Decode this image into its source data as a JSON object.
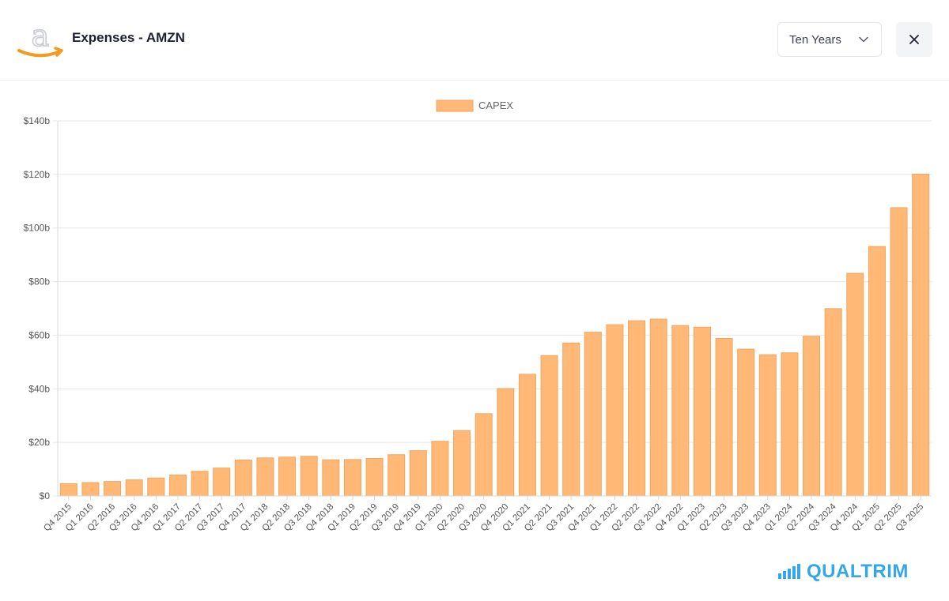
{
  "header": {
    "title": "Expenses - AMZN",
    "range_select": {
      "value": "Ten Years"
    }
  },
  "brand": {
    "name": "QUALTRIM"
  },
  "icons": {
    "logo": "amazon-logo-icon",
    "chevron": "chevron-down-icon",
    "close": "close-icon",
    "brand": "bar-chart-icon"
  },
  "colors": {
    "bar_fill": "#ffb876",
    "bar_stroke": "#f2a55f",
    "brand": "#32a8e9",
    "amazon_arrow": "#f39a1f"
  },
  "chart_data": {
    "type": "bar",
    "legend": [
      "CAPEX"
    ],
    "legend_position": "top-center",
    "grid": true,
    "ylim": [
      0,
      140
    ],
    "yticks": [
      "$0",
      "$20b",
      "$40b",
      "$60b",
      "$80b",
      "$100b",
      "$120b",
      "$140b"
    ],
    "categories": [
      "Q4 2015",
      "Q1 2016",
      "Q2 2016",
      "Q3 2016",
      "Q4 2016",
      "Q1 2017",
      "Q2 2017",
      "Q3 2017",
      "Q4 2017",
      "Q1 2018",
      "Q2 2018",
      "Q3 2018",
      "Q4 2018",
      "Q1 2019",
      "Q2 2019",
      "Q3 2019",
      "Q4 2019",
      "Q1 2020",
      "Q2 2020",
      "Q3 2020",
      "Q4 2020",
      "Q1 2021",
      "Q2 2021",
      "Q3 2021",
      "Q4 2021",
      "Q1 2022",
      "Q2 2022",
      "Q3 2022",
      "Q4 2022",
      "Q1 2023",
      "Q2 2023",
      "Q3 2023",
      "Q4 2023",
      "Q1 2024",
      "Q2 2024",
      "Q3 2024",
      "Q4 2024",
      "Q1 2025",
      "Q2 2025",
      "Q3 2025"
    ],
    "series": [
      {
        "name": "CAPEX",
        "values": [
          4.6,
          5.0,
          5.4,
          6.0,
          6.7,
          7.8,
          9.2,
          10.4,
          13.4,
          14.2,
          14.5,
          14.8,
          13.5,
          13.6,
          14.0,
          15.4,
          16.9,
          20.4,
          24.4,
          30.7,
          40.1,
          45.4,
          52.4,
          57.1,
          61.1,
          63.9,
          65.4,
          66.0,
          63.6,
          63.0,
          58.8,
          54.8,
          52.7,
          53.4,
          59.6,
          69.9,
          83.1,
          93.1,
          107.6,
          120.1
        ]
      }
    ]
  }
}
